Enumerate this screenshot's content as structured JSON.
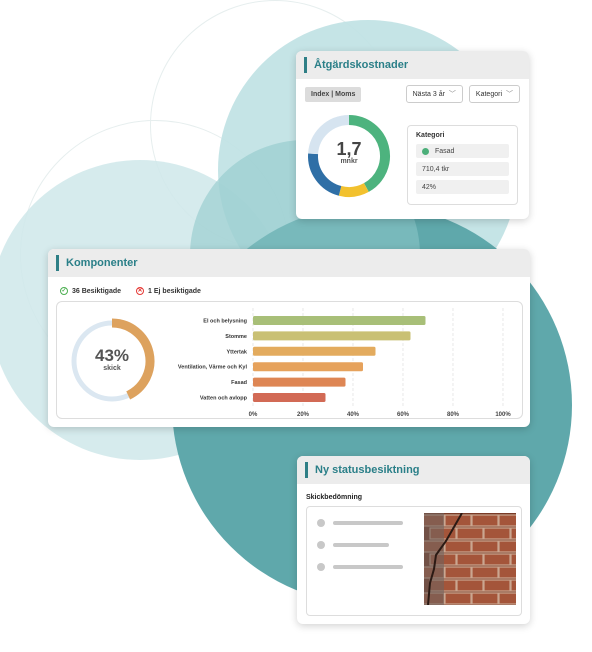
{
  "cost_card": {
    "title": "Åtgärdskostnader",
    "pill_label": "Index | Moms",
    "period_dropdown": "Nästa 3 år",
    "category_dropdown": "Kategori",
    "center_value": "1,7",
    "center_unit": "mnkr",
    "donut_segments": [
      {
        "color": "#4db37e",
        "fraction": 0.42
      },
      {
        "color": "#f2c12e",
        "fraction": 0.12
      },
      {
        "color": "#2f6fa6",
        "fraction": 0.22
      },
      {
        "color": "#d6e4f0",
        "fraction": 0.24
      }
    ],
    "category_panel": {
      "label": "Kategori",
      "selected": "Fasad",
      "value": "710,4 tkr",
      "percent": "42%"
    }
  },
  "components_card": {
    "title": "Komponenter",
    "inspected_label": "36 Besiktigade",
    "not_inspected_label": "1 Ej besiktigade",
    "condition_percent": "43%",
    "condition_label": "skick",
    "condition_fraction": 0.43,
    "colors": {
      "ring_fill": "#dda25e",
      "ring_track": "#dbe7f1"
    }
  },
  "chart_data": {
    "type": "bar",
    "orientation": "horizontal",
    "categories": [
      "El och belysning",
      "Stomme",
      "Yttertak",
      "Ventilation, Värme och Kyl",
      "Fasad",
      "Vatten och avlopp"
    ],
    "values": [
      69,
      63,
      49,
      44,
      37,
      29
    ],
    "colors": [
      "#a8bf78",
      "#c9c074",
      "#e3ab5e",
      "#e6a25c",
      "#de8654",
      "#d26a55"
    ],
    "xlim": [
      0,
      100
    ],
    "xticks": [
      "0%",
      "20%",
      "40%",
      "60%",
      "80%",
      "100%"
    ],
    "grid": true
  },
  "status_card": {
    "title": "Ny statusbesiktning",
    "subtitle": "Skickbedömning"
  }
}
